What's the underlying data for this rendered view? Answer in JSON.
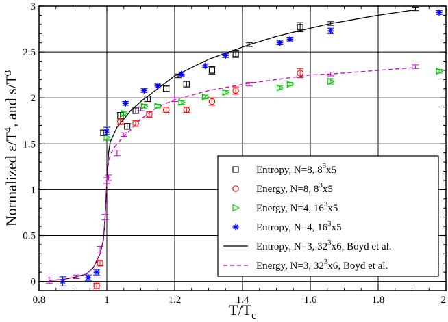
{
  "chart_data": {
    "type": "scatter",
    "title": "",
    "xlabel": "T/T",
    "xlabel_sub": "c",
    "ylabel": "Normalized ε/T",
    "ylabel_sup1": "4",
    "ylabel_mid": ", and s/T",
    "ylabel_sup2": "3",
    "xlim": [
      0.8,
      2.0
    ],
    "ylim": [
      -0.1,
      3.0
    ],
    "grid": true,
    "legend_position": "center-right",
    "x_ticks": [
      0.8,
      1.0,
      1.2,
      1.4,
      1.6,
      1.8,
      2.0
    ],
    "x_tick_labels": [
      "0.8",
      "1",
      "1.2",
      "1.4",
      "1.6",
      "1.8",
      "2"
    ],
    "y_ticks": [
      0,
      0.5,
      1.0,
      1.5,
      2.0,
      2.5,
      3.0
    ],
    "y_tick_labels": [
      "0",
      "0.5",
      "1",
      "1.5",
      "2",
      "2.5",
      "3"
    ],
    "series": [
      {
        "name": "Entropy, N=8, 8",
        "name_sup": "3",
        "name_tail": "x5",
        "marker": "square",
        "color": "#000000",
        "points": [
          {
            "x": 0.99,
            "y": 1.62,
            "err": 0.03
          },
          {
            "x": 1.04,
            "y": 1.81,
            "err": 0.03
          },
          {
            "x": 1.06,
            "y": 1.69,
            "err": 0.03
          },
          {
            "x": 1.085,
            "y": 1.86,
            "err": 0.03
          },
          {
            "x": 1.12,
            "y": 1.99,
            "err": 0.03
          },
          {
            "x": 1.175,
            "y": 2.1,
            "err": 0.03
          },
          {
            "x": 1.235,
            "y": 2.15,
            "err": 0.03
          },
          {
            "x": 1.31,
            "y": 2.3,
            "err": 0.04
          },
          {
            "x": 1.38,
            "y": 2.48,
            "err": 0.04
          },
          {
            "x": 1.57,
            "y": 2.77,
            "err": 0.05
          }
        ]
      },
      {
        "name": "Energy, N=8, 8",
        "name_sup": "3",
        "name_tail": "x5",
        "marker": "circle",
        "color": "#ff0000",
        "points": [
          {
            "x": 0.97,
            "y": -0.05,
            "err": 0.03
          },
          {
            "x": 0.98,
            "y": 0.2,
            "err": 0.03
          },
          {
            "x": 1.04,
            "y": 1.74,
            "err": 0.03
          },
          {
            "x": 1.085,
            "y": 1.72,
            "err": 0.03
          },
          {
            "x": 1.125,
            "y": 1.82,
            "err": 0.03
          },
          {
            "x": 1.175,
            "y": 1.87,
            "err": 0.03
          },
          {
            "x": 1.235,
            "y": 1.87,
            "err": 0.03
          },
          {
            "x": 1.31,
            "y": 1.96,
            "err": 0.04
          },
          {
            "x": 1.38,
            "y": 2.08,
            "err": 0.04
          },
          {
            "x": 1.57,
            "y": 2.27,
            "err": 0.05
          }
        ]
      },
      {
        "name": "Energy, N=4, 16",
        "name_sup": "3",
        "name_tail": "x5",
        "marker": "triangle-right",
        "color": "#00cc00",
        "points": [
          {
            "x": 1.0,
            "y": 1.57,
            "err": 0.03
          },
          {
            "x": 1.05,
            "y": 1.83,
            "err": 0.02
          },
          {
            "x": 1.11,
            "y": 1.91,
            "err": 0.02
          },
          {
            "x": 1.15,
            "y": 1.91,
            "err": 0.02
          },
          {
            "x": 1.22,
            "y": 1.95,
            "err": 0.02
          },
          {
            "x": 1.29,
            "y": 2.01,
            "err": 0.02
          },
          {
            "x": 1.35,
            "y": 2.06,
            "err": 0.02
          },
          {
            "x": 1.51,
            "y": 2.11,
            "err": 0.02
          },
          {
            "x": 1.54,
            "y": 2.15,
            "err": 0.02
          },
          {
            "x": 1.66,
            "y": 2.18,
            "err": 0.03
          },
          {
            "x": 1.98,
            "y": 2.29,
            "err": 0.02
          }
        ]
      },
      {
        "name": "Entropy, N=4, 16",
        "name_sup": "3",
        "name_tail": "x5",
        "marker": "star",
        "color": "#0000ff",
        "points": [
          {
            "x": 0.87,
            "y": 0.0,
            "err": 0.05
          },
          {
            "x": 0.945,
            "y": 0.04,
            "err": 0.03
          },
          {
            "x": 0.97,
            "y": 0.1,
            "err": 0.03
          },
          {
            "x": 1.0,
            "y": 1.64,
            "err": 0.04
          },
          {
            "x": 1.055,
            "y": 1.94,
            "err": 0.02
          },
          {
            "x": 1.11,
            "y": 2.08,
            "err": 0.02
          },
          {
            "x": 1.15,
            "y": 2.13,
            "err": 0.02
          },
          {
            "x": 1.22,
            "y": 2.26,
            "err": 0.02
          },
          {
            "x": 1.29,
            "y": 2.35,
            "err": 0.02
          },
          {
            "x": 1.35,
            "y": 2.46,
            "err": 0.02
          },
          {
            "x": 1.51,
            "y": 2.6,
            "err": 0.02
          },
          {
            "x": 1.54,
            "y": 2.64,
            "err": 0.02
          },
          {
            "x": 1.66,
            "y": 2.73,
            "err": 0.03
          },
          {
            "x": 1.98,
            "y": 2.93,
            "err": 0.02
          }
        ]
      },
      {
        "name": "Entropy, N=3, 32",
        "name_sup": "3",
        "name_tail": "x6, Boyd et al.",
        "marker": "line",
        "line_style": "solid",
        "color": "#000000",
        "x": [
          0.83,
          0.87,
          0.91,
          0.94,
          0.96,
          0.98,
          0.99,
          0.995,
          1.0,
          1.005,
          1.01,
          1.02,
          1.03,
          1.05,
          1.07,
          1.1,
          1.15,
          1.2,
          1.3,
          1.42,
          1.5,
          1.6,
          1.66,
          1.8,
          1.91
        ],
        "y": [
          0.01,
          0.02,
          0.05,
          0.08,
          0.15,
          0.3,
          0.45,
          0.7,
          1.1,
          1.4,
          1.52,
          1.6,
          1.68,
          1.77,
          1.86,
          1.96,
          2.1,
          2.24,
          2.42,
          2.58,
          2.67,
          2.76,
          2.81,
          2.9,
          2.96
        ]
      },
      {
        "name": "Energy, N=3, 32",
        "name_sup": "3",
        "name_tail": "x6, Boyd et al.",
        "marker": "line",
        "line_style": "dashed",
        "color": "#cc00cc",
        "x": [
          0.83,
          0.87,
          0.91,
          0.94,
          0.96,
          0.98,
          0.99,
          0.995,
          1.0,
          1.005,
          1.01,
          1.02,
          1.03,
          1.05,
          1.07,
          1.1,
          1.15,
          1.2,
          1.3,
          1.42,
          1.5,
          1.6,
          1.66,
          1.8,
          1.91
        ],
        "y": [
          0.01,
          0.02,
          0.05,
          0.08,
          0.15,
          0.3,
          0.45,
          0.7,
          1.1,
          1.3,
          1.38,
          1.45,
          1.5,
          1.58,
          1.65,
          1.77,
          1.9,
          1.98,
          2.08,
          2.16,
          2.2,
          2.25,
          2.26,
          2.3,
          2.33
        ]
      }
    ],
    "error_bar_points": {
      "color": "#cc00cc",
      "points": [
        {
          "x": 0.83,
          "y": 0.02,
          "err": 0.04
        },
        {
          "x": 0.91,
          "y": 0.05,
          "err": 0.02
        },
        {
          "x": 0.98,
          "y": 0.35,
          "err": 0.03
        },
        {
          "x": 0.995,
          "y": 0.7,
          "err": 0.03
        },
        {
          "x": 1.0,
          "y": 1.1,
          "err": 0.03
        },
        {
          "x": 1.005,
          "y": 1.13,
          "err": 0.03
        },
        {
          "x": 1.03,
          "y": 1.4,
          "err": 0.03
        },
        {
          "x": 1.05,
          "y": 1.6,
          "err": 0.02
        },
        {
          "x": 1.1,
          "y": 1.88,
          "err": 0.02
        },
        {
          "x": 1.2,
          "y": 1.98,
          "err": 0.02
        },
        {
          "x": 1.42,
          "y": 2.15,
          "err": 0.02
        },
        {
          "x": 1.66,
          "y": 2.26,
          "err": 0.02
        },
        {
          "x": 1.91,
          "y": 2.34,
          "err": 0.02
        }
      ]
    },
    "black_error_bar_points": {
      "color": "#000000",
      "points": [
        {
          "x": 1.0,
          "y": 1.58,
          "err": 0.04
        },
        {
          "x": 1.21,
          "y": 2.24,
          "err": 0.02
        },
        {
          "x": 1.42,
          "y": 2.58,
          "err": 0.02
        },
        {
          "x": 1.66,
          "y": 2.81,
          "err": 0.02
        },
        {
          "x": 1.91,
          "y": 2.97,
          "err": 0.02
        }
      ]
    }
  }
}
